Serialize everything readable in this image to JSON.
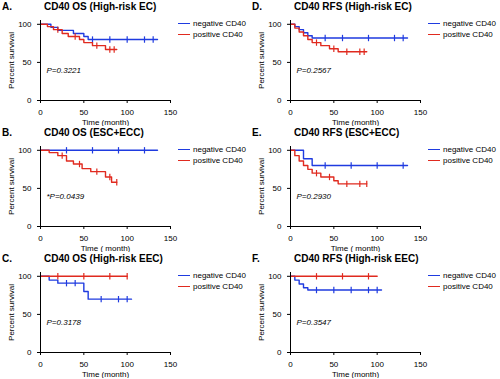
{
  "chart_data": [
    {
      "type": "line",
      "label": "A.",
      "title": "CD40 OS (High-risk EC)",
      "x_label": "Time (month)",
      "y_label": "Percent survival",
      "xlim": [
        0,
        150
      ],
      "ylim": [
        0,
        105
      ],
      "xticks": [
        0,
        50,
        100,
        150
      ],
      "yticks": [
        0,
        50,
        100
      ],
      "annotation": "P=0.3221",
      "series": [
        {
          "name": "negative CD40",
          "color": "#1f3be0",
          "marker": "tick",
          "line_style": "step",
          "x": [
            0,
            12,
            20,
            38,
            50,
            55,
            135
          ],
          "values": [
            100,
            96,
            92,
            88,
            84,
            80,
            80
          ],
          "censored_x": [
            60,
            80,
            100,
            120,
            130
          ],
          "censored_values": [
            80,
            80,
            80,
            80,
            80
          ]
        },
        {
          "name": "positive CD40",
          "color": "#e02a1f",
          "marker": "tick",
          "line_style": "step",
          "x": [
            0,
            8,
            15,
            25,
            32,
            45,
            50,
            60,
            75,
            88
          ],
          "values": [
            100,
            97,
            93,
            88,
            84,
            80,
            76,
            72,
            67,
            67
          ],
          "censored_x": [
            20,
            40,
            65,
            80,
            85
          ],
          "censored_values": [
            93,
            84,
            72,
            67,
            67
          ]
        }
      ]
    },
    {
      "type": "line",
      "label": "B.",
      "title": "CD40 OS (ESC+ECC)",
      "x_label": "Time ( month)",
      "y_label": "Percent survival",
      "xlim": [
        0,
        150
      ],
      "ylim": [
        0,
        105
      ],
      "xticks": [
        0,
        50,
        100,
        150
      ],
      "yticks": [
        0,
        50,
        100
      ],
      "annotation": "*P=0.0439",
      "series": [
        {
          "name": "negative CD40",
          "color": "#1f3be0",
          "marker": "tick",
          "line_style": "step",
          "x": [
            0,
            135
          ],
          "values": [
            100,
            100
          ],
          "censored_x": [
            30,
            60,
            90,
            120
          ],
          "censored_values": [
            100,
            100,
            100,
            100
          ]
        },
        {
          "name": "positive CD40",
          "color": "#e02a1f",
          "marker": "tick",
          "line_style": "step",
          "x": [
            0,
            10,
            20,
            30,
            38,
            48,
            58,
            75,
            82,
            88
          ],
          "values": [
            100,
            97,
            93,
            86,
            82,
            76,
            72,
            65,
            58,
            58
          ],
          "censored_x": [
            25,
            45,
            65,
            80,
            88
          ],
          "censored_values": [
            93,
            82,
            72,
            65,
            58
          ]
        }
      ]
    },
    {
      "type": "line",
      "label": "C.",
      "title": "CD40 OS (High-risk EEC)",
      "x_label": "Time (month)",
      "y_label": "Percent survival",
      "xlim": [
        0,
        150
      ],
      "ylim": [
        0,
        105
      ],
      "xticks": [
        0,
        50,
        100,
        150
      ],
      "yticks": [
        0,
        50,
        100
      ],
      "annotation": "P=0.3178",
      "series": [
        {
          "name": "negative CD40",
          "color": "#1f3be0",
          "marker": "tick",
          "line_style": "step",
          "x": [
            0,
            10,
            20,
            50,
            55,
            105
          ],
          "values": [
            100,
            95,
            91,
            80,
            70,
            70
          ],
          "censored_x": [
            30,
            40,
            70,
            90,
            100
          ],
          "censored_values": [
            91,
            91,
            70,
            70,
            70
          ]
        },
        {
          "name": "positive CD40",
          "color": "#e02a1f",
          "marker": "tick",
          "line_style": "step",
          "x": [
            0,
            100
          ],
          "values": [
            100,
            100
          ],
          "censored_x": [
            20,
            50,
            80,
            100
          ],
          "censored_values": [
            100,
            100,
            100,
            100
          ]
        }
      ]
    },
    {
      "type": "line",
      "label": "D.",
      "title": "CD40 RFS (High-risk EC)",
      "x_label": "Time (month)",
      "y_label": "Percent survival",
      "xlim": [
        0,
        150
      ],
      "ylim": [
        0,
        105
      ],
      "xticks": [
        0,
        50,
        100,
        150
      ],
      "yticks": [
        0,
        50,
        100
      ],
      "annotation": "P=0.2567",
      "series": [
        {
          "name": "negative CD40",
          "color": "#1f3be0",
          "marker": "tick",
          "line_style": "step",
          "x": [
            0,
            5,
            10,
            15,
            20,
            25,
            135
          ],
          "values": [
            100,
            97,
            93,
            89,
            85,
            82,
            82
          ],
          "censored_x": [
            40,
            60,
            90,
            120,
            130
          ],
          "censored_values": [
            82,
            82,
            82,
            82,
            82
          ]
        },
        {
          "name": "positive CD40",
          "color": "#e02a1f",
          "marker": "tick",
          "line_style": "step",
          "x": [
            0,
            5,
            10,
            15,
            20,
            25,
            35,
            45,
            55,
            88
          ],
          "values": [
            100,
            95,
            90,
            85,
            80,
            76,
            72,
            68,
            64,
            64
          ],
          "censored_x": [
            30,
            50,
            65,
            80,
            85
          ],
          "censored_values": [
            76,
            68,
            64,
            64,
            64
          ]
        }
      ]
    },
    {
      "type": "line",
      "label": "E.",
      "title": "CD40 RFS (ESC+ECC)",
      "x_label": "Time ( month)",
      "y_label": "Percent survival",
      "xlim": [
        0,
        150
      ],
      "ylim": [
        0,
        105
      ],
      "xticks": [
        0,
        50,
        100,
        150
      ],
      "yticks": [
        0,
        50,
        100
      ],
      "annotation": "P=0.2930",
      "series": [
        {
          "name": "negative CD40",
          "color": "#1f3be0",
          "marker": "tick",
          "line_style": "step",
          "x": [
            0,
            15,
            25,
            135
          ],
          "values": [
            100,
            89,
            80,
            80
          ],
          "censored_x": [
            40,
            70,
            100,
            130
          ],
          "censored_values": [
            80,
            80,
            80,
            80
          ]
        },
        {
          "name": "positive CD40",
          "color": "#e02a1f",
          "marker": "tick",
          "line_style": "step",
          "x": [
            0,
            5,
            10,
            15,
            20,
            25,
            35,
            50,
            55,
            88
          ],
          "values": [
            100,
            93,
            86,
            80,
            75,
            70,
            65,
            60,
            56,
            56
          ],
          "censored_x": [
            30,
            45,
            65,
            80,
            88
          ],
          "censored_values": [
            70,
            65,
            56,
            56,
            56
          ]
        }
      ]
    },
    {
      "type": "line",
      "label": "F.",
      "title": "CD40 RFS (High-risk EEC)",
      "x_label": "Time (month)",
      "y_label": "Percent survival",
      "xlim": [
        0,
        150
      ],
      "ylim": [
        0,
        105
      ],
      "xticks": [
        0,
        50,
        100,
        150
      ],
      "yticks": [
        0,
        50,
        100
      ],
      "annotation": "P=0.3547",
      "series": [
        {
          "name": "negative CD40",
          "color": "#1f3be0",
          "marker": "tick",
          "line_style": "step",
          "x": [
            0,
            5,
            10,
            15,
            20,
            105
          ],
          "values": [
            100,
            95,
            90,
            85,
            82,
            82
          ],
          "censored_x": [
            30,
            50,
            70,
            90,
            100
          ],
          "censored_values": [
            82,
            82,
            82,
            82,
            82
          ]
        },
        {
          "name": "positive CD40",
          "color": "#e02a1f",
          "marker": "tick",
          "line_style": "step",
          "x": [
            0,
            100
          ],
          "values": [
            100,
            100
          ],
          "censored_x": [
            30,
            60,
            90
          ],
          "censored_values": [
            100,
            100,
            100
          ]
        }
      ]
    }
  ]
}
